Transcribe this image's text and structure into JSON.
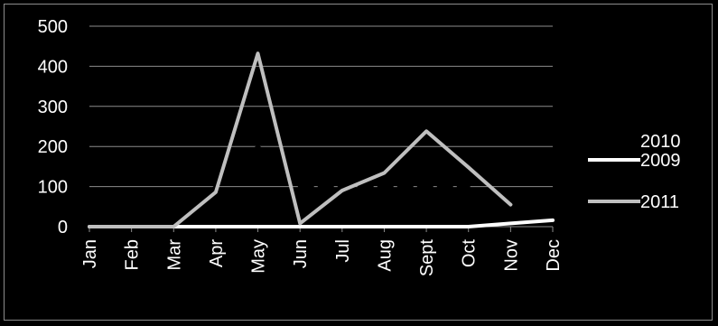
{
  "chart_data": {
    "type": "line",
    "categories": [
      "Jan",
      "Feb",
      "Mar",
      "Apr",
      "May",
      "Jun",
      "Jul",
      "Aug",
      "Sept",
      "Oct",
      "Nov",
      "Dec"
    ],
    "y_ticks": [
      "0",
      "100",
      "200",
      "300",
      "400",
      "500"
    ],
    "ylim": [
      0,
      500
    ],
    "grid": true,
    "legend_position": "right",
    "series": [
      {
        "name": "2010",
        "color": "#000000",
        "dashed": true,
        "values": [
          0,
          0,
          0,
          100,
          200,
          100,
          100,
          100,
          100,
          100,
          null,
          null
        ]
      },
      {
        "name": "2009",
        "color": "#ffffff",
        "dashed": false,
        "values": [
          0,
          0,
          0,
          0,
          0,
          0,
          0,
          0,
          0,
          0,
          8,
          16
        ]
      },
      {
        "name": "2011",
        "color": "#bfbfbf",
        "dashed": false,
        "values": [
          0,
          0,
          0,
          86,
          432,
          8,
          90,
          134,
          238,
          148,
          55,
          null
        ]
      }
    ]
  }
}
